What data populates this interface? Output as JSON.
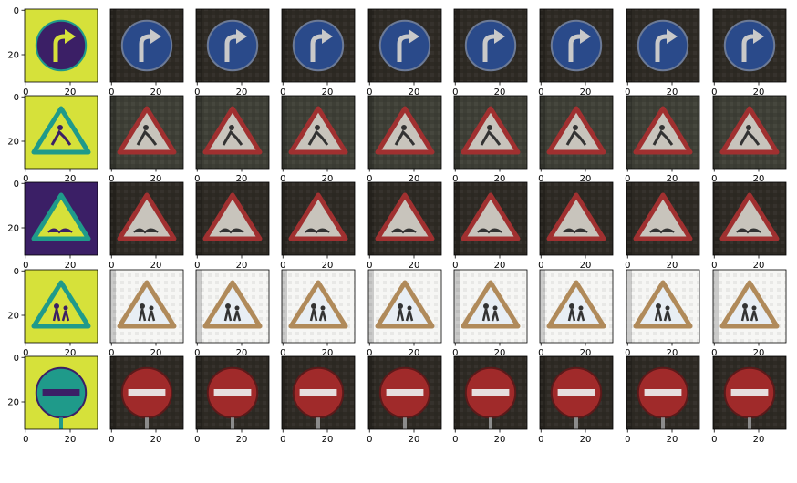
{
  "chart_data": {
    "type": "image_grid",
    "rows": 5,
    "cols": 9,
    "xticks": [
      "0",
      "20"
    ],
    "yticks": [
      "0",
      "20"
    ],
    "show_yticks_on": "first-column",
    "row_contents": [
      {
        "sign": "turn-right-ahead",
        "shape": "circle",
        "first_panel": "grayscale-viridis",
        "others": "dark-photo"
      },
      {
        "sign": "road-work",
        "shape": "triangle",
        "first_panel": "grayscale-viridis",
        "others": "dim-photo"
      },
      {
        "sign": "bumpy-road",
        "shape": "triangle",
        "first_panel": "grayscale-viridis",
        "others": "dark-photo"
      },
      {
        "sign": "children-crossing",
        "shape": "triangle",
        "first_panel": "grayscale-viridis",
        "others": "bright-photo"
      },
      {
        "sign": "no-entry",
        "shape": "circle",
        "first_panel": "grayscale-viridis",
        "others": "dark-photo"
      }
    ]
  },
  "colors": {
    "viridis_dark": "#3b1f66",
    "viridis_mid": "#1f9a8a",
    "viridis_light": "#d6e13a",
    "sign_blue": "#2a4a8a",
    "sign_red": "#a02a2a",
    "axis": "#000000"
  }
}
